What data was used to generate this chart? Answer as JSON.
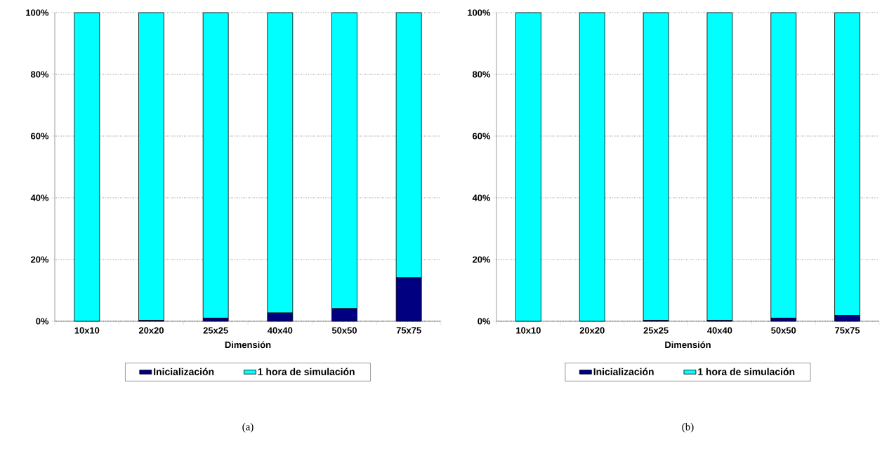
{
  "chart_data": [
    {
      "type": "bar",
      "stacked": true,
      "categories": [
        "10x10",
        "20x20",
        "25x25",
        "40x40",
        "50x50",
        "75x75"
      ],
      "xlabel": "Dimensión",
      "series": [
        {
          "name": "Inicialización",
          "color": "#000080",
          "values": [
            0,
            0.3,
            1,
            2.7,
            4.1,
            14.1
          ]
        },
        {
          "name": "1 hora de simulación",
          "color": "#00ffff",
          "values": [
            100,
            99.7,
            99,
            97.3,
            95.9,
            85.9
          ]
        }
      ],
      "ylim": [
        0,
        100
      ],
      "yticks": [
        {
          "value": 0,
          "label": "0%"
        },
        {
          "value": 20,
          "label": "20%"
        },
        {
          "value": 40,
          "label": "40%"
        },
        {
          "value": 60,
          "label": "60%"
        },
        {
          "value": 80,
          "label": "80%"
        },
        {
          "value": 100,
          "label": "100%"
        }
      ],
      "grid": "y",
      "legend": "bottom",
      "annotations": [
        "(a)"
      ]
    },
    {
      "type": "bar",
      "stacked": true,
      "categories": [
        "10x10",
        "20x20",
        "25x25",
        "40x40",
        "50x50",
        "75x75"
      ],
      "xlabel": "Dimensión",
      "series": [
        {
          "name": "Inicialización",
          "color": "#000080",
          "values": [
            0,
            0,
            0.3,
            0.3,
            1,
            1.9
          ]
        },
        {
          "name": "1 hora de simulación",
          "color": "#00ffff",
          "values": [
            100,
            100,
            99.7,
            99.7,
            99,
            98.1
          ]
        }
      ],
      "ylim": [
        0,
        100
      ],
      "yticks": [
        {
          "value": 0,
          "label": "0%"
        },
        {
          "value": 20,
          "label": "20%"
        },
        {
          "value": 40,
          "label": "40%"
        },
        {
          "value": 60,
          "label": "60%"
        },
        {
          "value": 80,
          "label": "80%"
        },
        {
          "value": 100,
          "label": "100%"
        }
      ],
      "grid": "y",
      "legend": "bottom",
      "annotations": [
        "(b)"
      ]
    }
  ]
}
